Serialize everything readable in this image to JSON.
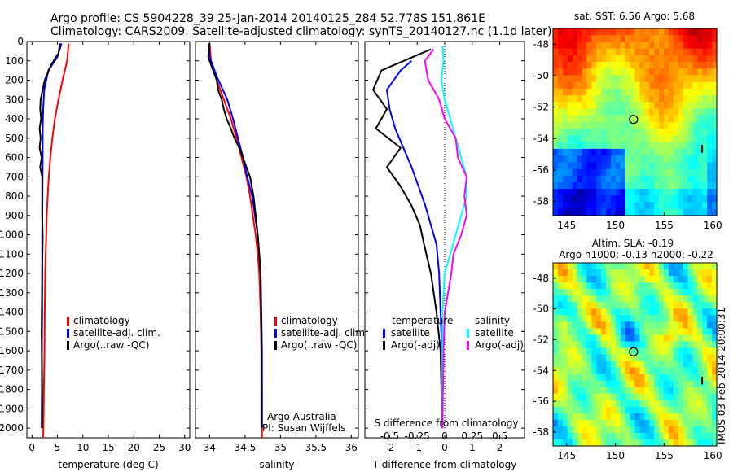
{
  "header": {
    "line1": "Argo profile: CS 5904228_39 25-Jan-2014 20140125_284 52.778S 151.861E",
    "line2": "Climatology: CARS2009. Satellite-adjusted climatology: synTS_20140127.nc (1.1d later)"
  },
  "colors": {
    "climatology": "#ff0000",
    "satellite": "#0000ff",
    "argo": "#000000",
    "s_sat": "#00ffff",
    "s_argo": "#ff00ff"
  },
  "chart_data": [
    {
      "type": "line",
      "id": "temperature",
      "xlabel": "temperature (deg C)",
      "ylabel": "",
      "xlim": [
        -1,
        31
      ],
      "ylim": [
        2050,
        0
      ],
      "xticks": [
        0,
        5,
        10,
        15,
        20,
        25,
        30
      ],
      "yticks": [
        0,
        100,
        200,
        300,
        400,
        500,
        600,
        700,
        800,
        900,
        1000,
        1100,
        1200,
        1300,
        1400,
        1500,
        1600,
        1700,
        1800,
        1900,
        2000
      ],
      "legend": [
        "climatology",
        "satellite-adj. clim.",
        "Argo(..raw -QC)"
      ],
      "series": [
        {
          "name": "climatology",
          "color": "#ff0000",
          "x": [
            7.2,
            6.9,
            6.0,
            5.2,
            4.5,
            4.0,
            3.6,
            3.3,
            3.1,
            2.9,
            2.8,
            2.7,
            2.6,
            2.5,
            2.45,
            2.4,
            2.35,
            2.3,
            2.25,
            2.2
          ],
          "y": [
            10,
            100,
            200,
            300,
            400,
            500,
            600,
            700,
            800,
            900,
            1000,
            1100,
            1200,
            1400,
            1600,
            1700,
            1800,
            1900,
            2000,
            2050
          ]
        },
        {
          "name": "satellite-adj. clim.",
          "color": "#0000ff",
          "x": [
            5.8,
            5.0,
            3.2,
            2.4,
            2.2,
            2.1,
            2.1,
            2.05,
            2.0,
            2.0,
            2.0,
            1.95,
            1.95,
            1.9
          ],
          "y": [
            10,
            80,
            150,
            250,
            350,
            450,
            600,
            800,
            1000,
            1200,
            1400,
            1600,
            1800,
            2000
          ]
        },
        {
          "name": "Argo(..raw -QC)",
          "color": "#000000",
          "x": [
            5.5,
            5.2,
            3.8,
            2.5,
            2.0,
            1.7,
            1.6,
            1.8,
            1.5,
            1.7,
            1.5,
            1.9,
            1.6,
            2.0,
            2.0,
            2.0,
            2.0,
            2.1,
            2.0,
            1.9,
            2.0,
            2.0
          ],
          "y": [
            10,
            60,
            120,
            200,
            260,
            300,
            350,
            400,
            450,
            500,
            550,
            600,
            650,
            700,
            750,
            800,
            900,
            1000,
            1200,
            1500,
            1800,
            2000
          ]
        }
      ]
    },
    {
      "type": "line",
      "id": "salinity",
      "xlabel": "salinity",
      "ylabel": "",
      "xlim": [
        33.8,
        36.1
      ],
      "ylim": [
        2050,
        0
      ],
      "xticks": [
        34,
        34.5,
        35,
        35.5,
        36
      ],
      "legend": [
        "climatology",
        "satellite-adj. clim.",
        "Argo(..raw -QC)"
      ],
      "annotations": [
        "Argo Australia",
        "PI: Susan Wijffels"
      ],
      "series": [
        {
          "name": "climatology",
          "color": "#ff0000",
          "x": [
            34.0,
            34.02,
            34.1,
            34.2,
            34.3,
            34.38,
            34.45,
            34.52,
            34.57,
            34.61,
            34.65,
            34.68,
            34.7,
            34.72,
            34.73,
            34.74,
            34.74
          ],
          "y": [
            10,
            100,
            200,
            300,
            400,
            500,
            600,
            700,
            800,
            900,
            1000,
            1100,
            1200,
            1400,
            1600,
            1800,
            2050
          ]
        },
        {
          "name": "satellite-adj. clim.",
          "color": "#0000ff",
          "x": [
            33.99,
            34.0,
            34.1,
            34.25,
            34.33,
            34.4,
            34.47,
            34.53,
            34.6,
            34.64,
            34.68,
            34.7,
            34.72,
            34.73,
            34.74,
            34.74,
            34.74
          ],
          "y": [
            10,
            80,
            180,
            300,
            400,
            500,
            600,
            700,
            800,
            900,
            1000,
            1100,
            1200,
            1400,
            1600,
            1800,
            2000
          ]
        },
        {
          "name": "Argo(..raw -QC)",
          "color": "#000000",
          "x": [
            34.0,
            33.98,
            34.05,
            34.1,
            34.12,
            34.17,
            34.2,
            34.24,
            34.3,
            34.35,
            34.42,
            34.47,
            34.52,
            34.57,
            34.62,
            34.65,
            34.68,
            34.7,
            34.72,
            34.73,
            34.73
          ],
          "y": [
            10,
            80,
            150,
            200,
            250,
            300,
            350,
            400,
            450,
            500,
            550,
            600,
            650,
            700,
            800,
            900,
            1000,
            1100,
            1200,
            1500,
            2000
          ]
        }
      ]
    },
    {
      "type": "line",
      "id": "difference",
      "xlabel": "T difference from climatology",
      "x2label": "S difference from climatology",
      "ylabel": "",
      "xlim": [
        -2.9,
        2.9
      ],
      "ylim": [
        2050,
        0
      ],
      "xticks": [
        -2,
        -1,
        0,
        1,
        2
      ],
      "x2ticks": [
        -0.5,
        -0.25,
        0,
        0.25,
        0.5
      ],
      "legend": [
        "temperature",
        "satellite",
        "Argo(-adj)",
        "salinity",
        "satellite",
        "Argo(-adj)"
      ],
      "series": [
        {
          "name": "T satellite",
          "color": "#0000ff",
          "x": [
            -1.2,
            -1.6,
            -2.1,
            -2.0,
            -1.8,
            -1.5,
            -1.2,
            -0.95,
            -0.7,
            -0.5,
            -0.3,
            -0.2,
            -0.15,
            -0.1,
            -0.1,
            -0.1
          ],
          "y": [
            100,
            150,
            250,
            350,
            450,
            550,
            650,
            750,
            850,
            950,
            1050,
            1200,
            1400,
            1600,
            1800,
            2000
          ]
        },
        {
          "name": "T Argo(-adj)",
          "color": "#000000",
          "x": [
            -0.5,
            -2.3,
            -2.6,
            -2.1,
            -2.5,
            -1.6,
            -2.1,
            -1.6,
            -1.2,
            -0.9,
            -0.75,
            -0.5,
            -0.3,
            -0.15,
            -0.12,
            -0.1
          ],
          "y": [
            40,
            150,
            250,
            350,
            450,
            550,
            650,
            750,
            850,
            950,
            1050,
            1200,
            1400,
            1600,
            1800,
            2000
          ]
        },
        {
          "name": "S satellite",
          "color": "#00ffff",
          "x": [
            -0.02,
            -0.01,
            -0.03,
            0.0,
            0.05,
            0.1,
            0.15,
            0.2,
            0.2,
            0.15,
            0.1,
            0.05,
            0.0,
            -0.02,
            -0.02,
            -0.02
          ],
          "y": [
            20,
            100,
            200,
            300,
            400,
            500,
            600,
            700,
            800,
            900,
            1000,
            1100,
            1200,
            1400,
            1600,
            2000
          ]
        },
        {
          "name": "S Argo(-adj)",
          "color": "#ff00ff",
          "x": [
            -0.1,
            -0.18,
            -0.15,
            -0.05,
            0.0,
            0.1,
            0.12,
            0.2,
            0.18,
            0.2,
            0.15,
            0.08,
            0.06,
            0.03,
            0.0,
            -0.01,
            -0.02
          ],
          "y": [
            40,
            100,
            200,
            300,
            400,
            500,
            600,
            700,
            800,
            900,
            1000,
            1100,
            1200,
            1300,
            1400,
            1600,
            2000
          ]
        }
      ]
    },
    {
      "type": "heatmap",
      "id": "sst-map",
      "title": "sat. SST: 6.56 Argo: 5.68",
      "xlim": [
        143.6,
        160.4
      ],
      "ylim": [
        -58.9,
        -47
      ],
      "xticks": [
        145,
        150,
        155,
        160
      ],
      "yticks": [
        -48,
        -50,
        -52,
        -54,
        -56,
        -58
      ],
      "profile_location": [
        151.861,
        -52.778
      ]
    },
    {
      "type": "heatmap",
      "id": "sla-map",
      "title": "Altim. SLA: -0.19",
      "subtitle": "Argo h1000: -0.13 h2000: -0.22",
      "xlim": [
        143.6,
        160.4
      ],
      "ylim": [
        -58.9,
        -47
      ],
      "xticks": [
        145,
        150,
        155,
        160
      ],
      "yticks": [
        -48,
        -50,
        -52,
        -54,
        -56,
        -58
      ],
      "profile_location": [
        151.861,
        -52.778
      ],
      "vertical_label": "IMOS 03-Feb-2014 20:00:31"
    }
  ]
}
